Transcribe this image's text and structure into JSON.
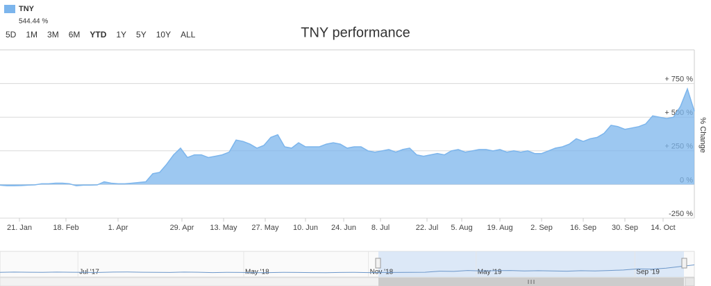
{
  "chart_data": [
    {
      "type": "area",
      "title": "TNY performance",
      "y_axis_label": "% Change",
      "range_buttons": [
        {
          "label": "5D"
        },
        {
          "label": "1M"
        },
        {
          "label": "3M"
        },
        {
          "label": "6M"
        },
        {
          "label": "YTD",
          "selected": true
        },
        {
          "label": "1Y"
        },
        {
          "label": "5Y",
          "disabled": true
        },
        {
          "label": "10Y",
          "disabled": true
        },
        {
          "label": "ALL"
        }
      ],
      "series": [
        {
          "name": "TNY",
          "color": "#7cb5ec",
          "values": [
            -5,
            -10,
            -10,
            -8,
            -5,
            -3,
            5,
            5,
            10,
            10,
            5,
            -10,
            -5,
            -5,
            -3,
            20,
            10,
            5,
            5,
            10,
            15,
            20,
            80,
            90,
            150,
            220,
            270,
            200,
            220,
            220,
            200,
            210,
            220,
            240,
            330,
            320,
            300,
            270,
            290,
            350,
            370,
            280,
            270,
            310,
            280,
            280,
            280,
            300,
            310,
            300,
            270,
            280,
            280,
            250,
            240,
            250,
            260,
            240,
            260,
            270,
            220,
            210,
            220,
            230,
            220,
            250,
            260,
            240,
            250,
            260,
            260,
            250,
            260,
            240,
            250,
            240,
            250,
            230,
            230,
            250,
            270,
            280,
            300,
            340,
            320,
            340,
            350,
            380,
            440,
            430,
            410,
            420,
            430,
            450,
            510,
            500,
            490,
            500,
            580,
            710,
            544.44
          ],
          "value_labels": [
            null,
            null,
            null,
            null,
            null,
            null,
            null,
            null,
            null,
            null,
            null,
            null,
            null,
            null,
            null,
            null,
            null,
            null,
            null,
            null,
            null,
            null,
            null,
            null,
            null,
            null,
            null,
            null,
            null,
            null,
            null,
            null,
            null,
            null,
            null,
            null,
            null,
            null,
            null,
            null,
            null,
            null,
            null,
            null,
            null,
            null,
            null,
            null,
            null,
            null,
            null,
            null,
            null,
            null,
            null,
            null,
            null,
            null,
            null,
            null,
            null,
            null,
            null,
            null,
            null,
            null,
            null,
            null,
            null,
            null,
            null,
            null,
            null,
            null,
            null,
            null,
            null,
            null,
            null,
            null,
            null,
            null,
            null,
            null,
            null,
            null,
            null,
            null,
            null,
            null,
            null,
            null,
            null,
            null,
            null,
            null,
            null,
            null,
            null,
            null,
            "544.44 %"
          ]
        }
      ],
      "xlim": [
        0,
        100
      ],
      "xticks": [
        {
          "value": 2.8,
          "label": "21. Jan"
        },
        {
          "value": 9.5,
          "label": "18. Feb"
        },
        {
          "value": 17,
          "label": "1. Apr"
        },
        {
          "value": 26.2,
          "label": "29. Apr"
        },
        {
          "value": 32.2,
          "label": "13. May"
        },
        {
          "value": 38.2,
          "label": "27. May"
        },
        {
          "value": 44,
          "label": "10. Jun"
        },
        {
          "value": 49.5,
          "label": "24. Jun"
        },
        {
          "value": 54.8,
          "label": "8. Jul"
        },
        {
          "value": 61.5,
          "label": "22. Jul"
        },
        {
          "value": 66.5,
          "label": "5. Aug"
        },
        {
          "value": 72,
          "label": "19. Aug"
        },
        {
          "value": 78,
          "label": "2. Sep"
        },
        {
          "value": 84,
          "label": "16. Sep"
        },
        {
          "value": 90,
          "label": "30. Sep"
        },
        {
          "value": 95.5,
          "label": "14. Oct"
        }
      ],
      "ylim": [
        -250,
        1000
      ],
      "yticks": [
        {
          "value": -250,
          "label": "-250 %"
        },
        {
          "value": 0,
          "label": "0 %"
        },
        {
          "value": 250,
          "label": "+ 250 %"
        },
        {
          "value": 500,
          "label": "+ 500 %"
        },
        {
          "value": 750,
          "label": "+ 750 %"
        }
      ],
      "grid": true
    },
    {
      "type": "navigator",
      "series": [
        {
          "name": "TNY",
          "color": "#6b96c9",
          "values": [
            0,
            10,
            5,
            0,
            10,
            5,
            0,
            -5,
            10,
            15,
            5,
            0,
            -5,
            10,
            5,
            -10,
            0,
            -5,
            -15,
            -10,
            0,
            -5,
            -10,
            -15,
            -5,
            0,
            -10,
            -5,
            -5,
            0,
            5,
            50,
            40,
            80,
            60,
            70,
            80,
            60,
            70,
            60,
            50,
            70,
            60,
            80,
            100,
            150,
            140,
            180,
            250,
            320
          ]
        }
      ],
      "xlim": [
        0,
        49
      ],
      "ylim": [
        -200,
        900
      ],
      "xticks": [
        {
          "value": 5.5,
          "label": "Jul '17"
        },
        {
          "value": 17.2,
          "label": "May '18"
        },
        {
          "value": 26,
          "label": "Nov '18"
        },
        {
          "value": 33.6,
          "label": "May '19"
        },
        {
          "value": 44.8,
          "label": "Sep '19"
        }
      ]
    }
  ]
}
